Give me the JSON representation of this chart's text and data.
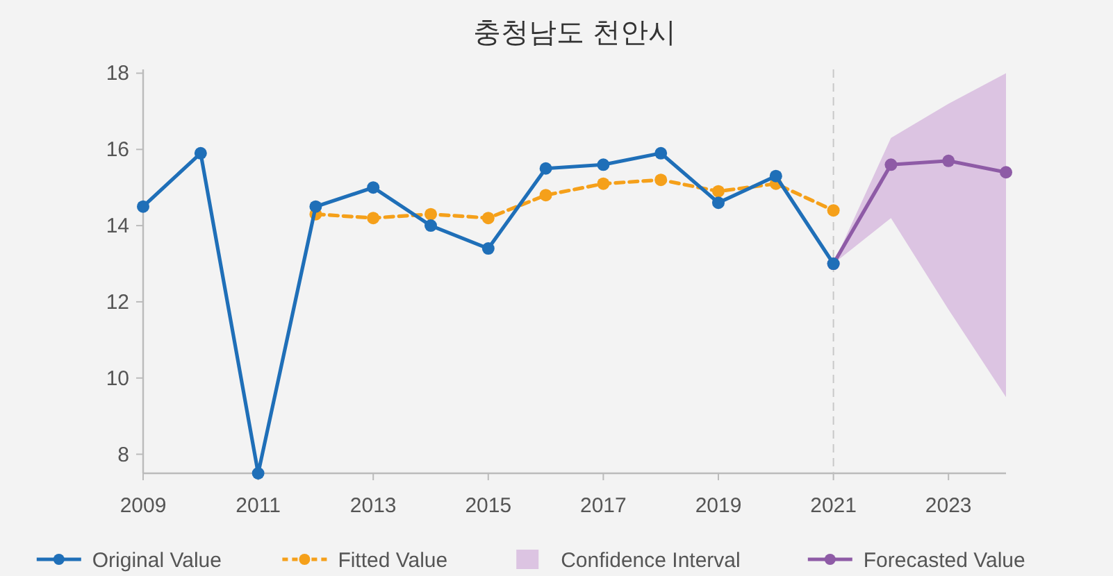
{
  "chart_data": {
    "type": "line",
    "title": "충청남도 천안시",
    "xlim": [
      2009,
      2024
    ],
    "xticks": [
      2009,
      2011,
      2013,
      2015,
      2017,
      2019,
      2021,
      2023
    ],
    "ylim": [
      7.5,
      18.1
    ],
    "yticks": [
      8,
      10,
      12,
      14,
      16,
      18
    ],
    "grid": false,
    "legend": "bottom",
    "marker": "circle",
    "ref_lines": [
      {
        "axis": "x",
        "value": 2021,
        "color": "#c8c8c8",
        "line_style": "dashed"
      }
    ],
    "series": [
      {
        "name": "Original Value",
        "type": "line",
        "color": "#1f6fb8",
        "line_style": "solid",
        "x": [
          2009,
          2010,
          2011,
          2012,
          2013,
          2014,
          2015,
          2016,
          2017,
          2018,
          2019,
          2020,
          2021
        ],
        "values": [
          14.5,
          15.9,
          7.5,
          14.5,
          15.0,
          14.0,
          13.4,
          15.5,
          15.6,
          15.9,
          14.6,
          15.3,
          13.0
        ]
      },
      {
        "name": "Fitted Value",
        "type": "line",
        "color": "#f5a01a",
        "line_style": "dashed",
        "x": [
          2012,
          2013,
          2014,
          2015,
          2016,
          2017,
          2018,
          2019,
          2020,
          2021
        ],
        "values": [
          14.3,
          14.2,
          14.3,
          14.2,
          14.8,
          15.1,
          15.2,
          14.9,
          15.1,
          14.4
        ]
      },
      {
        "name": "Confidence Interval",
        "type": "area",
        "color": "#dcc4e2",
        "x": [
          2021,
          2022,
          2023,
          2024
        ],
        "values": [
          null,
          null,
          null,
          null
        ],
        "lower": [
          13.0,
          14.2,
          11.8,
          9.5
        ],
        "upper": [
          13.0,
          16.3,
          17.2,
          18.0
        ]
      },
      {
        "name": "Forecasted Value",
        "type": "line",
        "color": "#8e5ba6",
        "line_style": "solid",
        "x": [
          2021,
          2022,
          2023,
          2024
        ],
        "values": [
          13.0,
          15.6,
          15.7,
          15.4
        ]
      }
    ]
  }
}
